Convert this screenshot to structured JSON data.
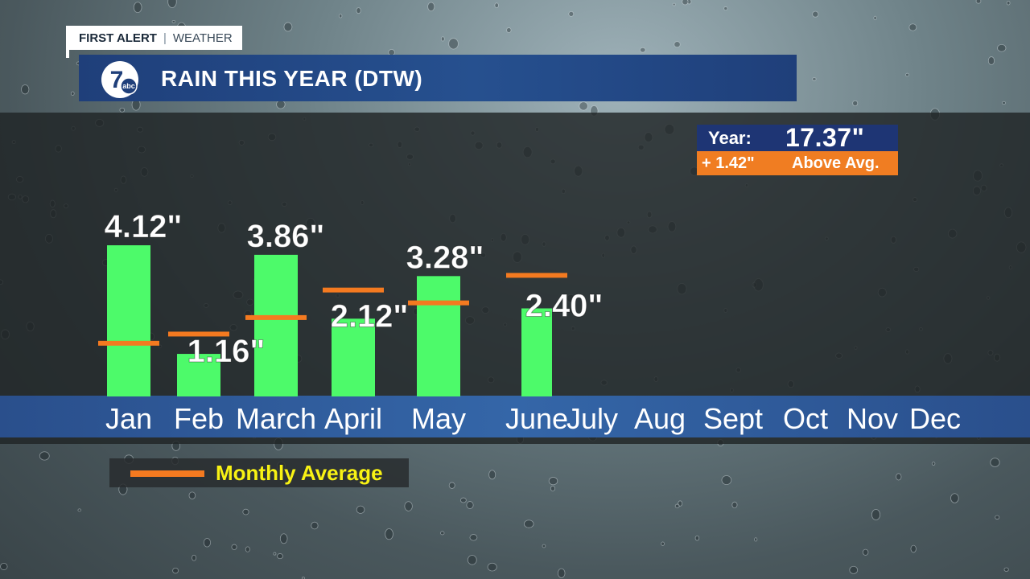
{
  "brand": {
    "first_alert": "FIRST ALERT",
    "weather": "WEATHER",
    "logo_number": "7",
    "logo_network": "abc"
  },
  "title": "RAIN THIS YEAR (DTW)",
  "year_summary": {
    "label": "Year:",
    "total": "17.37\"",
    "difference": "+ 1.42\"",
    "difference_label": "Above Avg."
  },
  "legend": {
    "label": "Monthly Average",
    "color": "#f47a20"
  },
  "colors": {
    "bar": "#4dfa6a",
    "average_line": "#f47a20",
    "axis_band": "#2f5c9c",
    "title_bar": "#23498a"
  },
  "chart_data": {
    "type": "bar",
    "categories": [
      "Jan",
      "Feb",
      "March",
      "April",
      "May",
      "June",
      "July",
      "Aug",
      "Sept",
      "Oct",
      "Nov",
      "Dec"
    ],
    "series": [
      {
        "values": [
          4.12,
          1.16,
          3.86,
          2.12,
          3.28,
          2.4,
          null,
          null,
          null,
          null,
          null,
          null
        ]
      }
    ],
    "value_labels": [
      "4.12\"",
      "1.16\"",
      "3.86\"",
      "2.12\"",
      "3.28\"",
      "2.40\"",
      "",
      "",
      "",
      "",
      "",
      ""
    ],
    "monthly_average": [
      1.45,
      1.7,
      2.15,
      2.9,
      2.55,
      3.3,
      null,
      null,
      null,
      null,
      null,
      null
    ],
    "ylim": [
      0,
      4.6
    ],
    "title": "RAIN THIS YEAR (DTW)",
    "legend": [
      "Monthly Average"
    ],
    "grid": false
  }
}
